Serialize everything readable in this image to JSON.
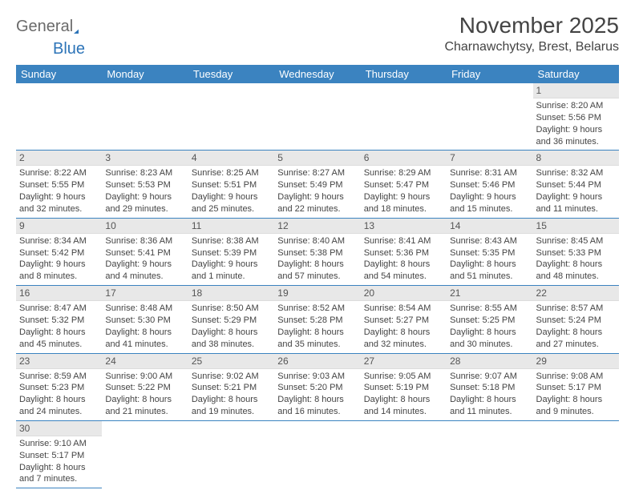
{
  "logo": {
    "text1": "General",
    "text2": "Blue",
    "shape_color": "#2d74b8"
  },
  "title": "November 2025",
  "location": "Charnawchytsy, Brest, Belarus",
  "colors": {
    "header_bg": "#3b83c0",
    "header_text": "#ffffff",
    "daynum_bg": "#e8e8e8",
    "border": "#3b83c0",
    "text": "#444444"
  },
  "day_headers": [
    "Sunday",
    "Monday",
    "Tuesday",
    "Wednesday",
    "Thursday",
    "Friday",
    "Saturday"
  ],
  "weeks": [
    [
      null,
      null,
      null,
      null,
      null,
      null,
      {
        "n": "1",
        "sr": "8:20 AM",
        "ss": "5:56 PM",
        "dl": "9 hours and 36 minutes."
      }
    ],
    [
      {
        "n": "2",
        "sr": "8:22 AM",
        "ss": "5:55 PM",
        "dl": "9 hours and 32 minutes."
      },
      {
        "n": "3",
        "sr": "8:23 AM",
        "ss": "5:53 PM",
        "dl": "9 hours and 29 minutes."
      },
      {
        "n": "4",
        "sr": "8:25 AM",
        "ss": "5:51 PM",
        "dl": "9 hours and 25 minutes."
      },
      {
        "n": "5",
        "sr": "8:27 AM",
        "ss": "5:49 PM",
        "dl": "9 hours and 22 minutes."
      },
      {
        "n": "6",
        "sr": "8:29 AM",
        "ss": "5:47 PM",
        "dl": "9 hours and 18 minutes."
      },
      {
        "n": "7",
        "sr": "8:31 AM",
        "ss": "5:46 PM",
        "dl": "9 hours and 15 minutes."
      },
      {
        "n": "8",
        "sr": "8:32 AM",
        "ss": "5:44 PM",
        "dl": "9 hours and 11 minutes."
      }
    ],
    [
      {
        "n": "9",
        "sr": "8:34 AM",
        "ss": "5:42 PM",
        "dl": "9 hours and 8 minutes."
      },
      {
        "n": "10",
        "sr": "8:36 AM",
        "ss": "5:41 PM",
        "dl": "9 hours and 4 minutes."
      },
      {
        "n": "11",
        "sr": "8:38 AM",
        "ss": "5:39 PM",
        "dl": "9 hours and 1 minute."
      },
      {
        "n": "12",
        "sr": "8:40 AM",
        "ss": "5:38 PM",
        "dl": "8 hours and 57 minutes."
      },
      {
        "n": "13",
        "sr": "8:41 AM",
        "ss": "5:36 PM",
        "dl": "8 hours and 54 minutes."
      },
      {
        "n": "14",
        "sr": "8:43 AM",
        "ss": "5:35 PM",
        "dl": "8 hours and 51 minutes."
      },
      {
        "n": "15",
        "sr": "8:45 AM",
        "ss": "5:33 PM",
        "dl": "8 hours and 48 minutes."
      }
    ],
    [
      {
        "n": "16",
        "sr": "8:47 AM",
        "ss": "5:32 PM",
        "dl": "8 hours and 45 minutes."
      },
      {
        "n": "17",
        "sr": "8:48 AM",
        "ss": "5:30 PM",
        "dl": "8 hours and 41 minutes."
      },
      {
        "n": "18",
        "sr": "8:50 AM",
        "ss": "5:29 PM",
        "dl": "8 hours and 38 minutes."
      },
      {
        "n": "19",
        "sr": "8:52 AM",
        "ss": "5:28 PM",
        "dl": "8 hours and 35 minutes."
      },
      {
        "n": "20",
        "sr": "8:54 AM",
        "ss": "5:27 PM",
        "dl": "8 hours and 32 minutes."
      },
      {
        "n": "21",
        "sr": "8:55 AM",
        "ss": "5:25 PM",
        "dl": "8 hours and 30 minutes."
      },
      {
        "n": "22",
        "sr": "8:57 AM",
        "ss": "5:24 PM",
        "dl": "8 hours and 27 minutes."
      }
    ],
    [
      {
        "n": "23",
        "sr": "8:59 AM",
        "ss": "5:23 PM",
        "dl": "8 hours and 24 minutes."
      },
      {
        "n": "24",
        "sr": "9:00 AM",
        "ss": "5:22 PM",
        "dl": "8 hours and 21 minutes."
      },
      {
        "n": "25",
        "sr": "9:02 AM",
        "ss": "5:21 PM",
        "dl": "8 hours and 19 minutes."
      },
      {
        "n": "26",
        "sr": "9:03 AM",
        "ss": "5:20 PM",
        "dl": "8 hours and 16 minutes."
      },
      {
        "n": "27",
        "sr": "9:05 AM",
        "ss": "5:19 PM",
        "dl": "8 hours and 14 minutes."
      },
      {
        "n": "28",
        "sr": "9:07 AM",
        "ss": "5:18 PM",
        "dl": "8 hours and 11 minutes."
      },
      {
        "n": "29",
        "sr": "9:08 AM",
        "ss": "5:17 PM",
        "dl": "8 hours and 9 minutes."
      }
    ],
    [
      {
        "n": "30",
        "sr": "9:10 AM",
        "ss": "5:17 PM",
        "dl": "8 hours and 7 minutes."
      },
      null,
      null,
      null,
      null,
      null,
      null
    ]
  ],
  "labels": {
    "sunrise": "Sunrise:",
    "sunset": "Sunset:",
    "daylight": "Daylight:"
  }
}
